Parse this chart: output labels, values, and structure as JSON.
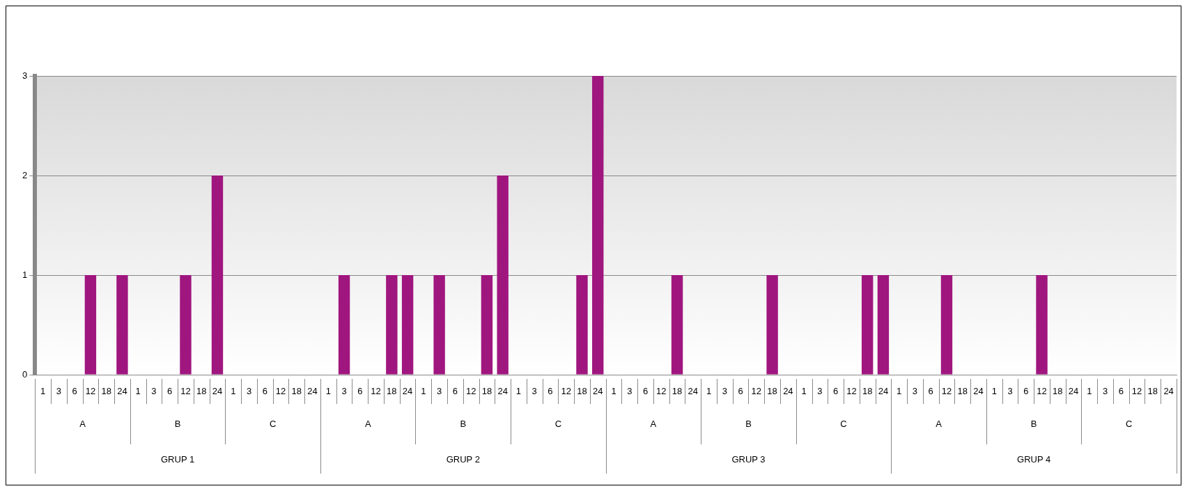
{
  "chart_data": {
    "type": "bar",
    "categories": [
      "1",
      "3",
      "6",
      "12",
      "18",
      "24",
      "1",
      "3",
      "6",
      "12",
      "18",
      "24",
      "1",
      "3",
      "6",
      "12",
      "18",
      "24",
      "1",
      "3",
      "6",
      "12",
      "18",
      "24",
      "1",
      "3",
      "6",
      "12",
      "18",
      "24",
      "1",
      "3",
      "6",
      "12",
      "18",
      "24",
      "1",
      "3",
      "6",
      "12",
      "18",
      "24",
      "1",
      "3",
      "6",
      "12",
      "18",
      "24",
      "1",
      "3",
      "6",
      "12",
      "18",
      "24",
      "1",
      "3",
      "6",
      "12",
      "18",
      "24",
      "1",
      "3",
      "6",
      "12",
      "18",
      "24",
      "1",
      "3",
      "6",
      "12",
      "18",
      "24"
    ],
    "values": [
      0,
      0,
      0,
      1,
      0,
      1,
      0,
      0,
      0,
      1,
      0,
      2,
      0,
      0,
      0,
      0,
      0,
      0,
      0,
      1,
      0,
      0,
      1,
      1,
      0,
      1,
      0,
      0,
      1,
      2,
      0,
      0,
      0,
      0,
      1,
      3,
      0,
      0,
      0,
      0,
      1,
      0,
      0,
      0,
      0,
      0,
      1,
      0,
      0,
      0,
      0,
      0,
      1,
      1,
      0,
      0,
      0,
      1,
      0,
      0,
      0,
      0,
      0,
      1,
      0,
      0,
      0,
      0,
      0,
      0,
      0,
      0
    ],
    "color": "#a0167f",
    "annotations": [
      "A",
      "B",
      "C",
      "GRUP 1",
      "A",
      "B",
      "C",
      "GRUP 2",
      "A",
      "B",
      "C",
      "GRUP 3",
      "A",
      "B",
      "C",
      "GRUP 4"
    ],
    "ylim": [
      0,
      3
    ],
    "yticks": [
      0,
      1,
      2,
      3
    ],
    "grid": "y",
    "legend": false
  }
}
